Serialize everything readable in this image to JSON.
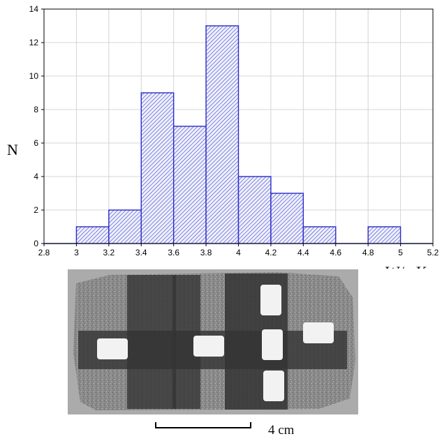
{
  "chart_data": {
    "type": "bar",
    "subtype": "histogram",
    "bin_edges": [
      2.8,
      3.0,
      3.2,
      3.4,
      3.6,
      3.8,
      4.0,
      4.2,
      4.4,
      4.6,
      4.8,
      5.0,
      5.2
    ],
    "counts": [
      0,
      1,
      2,
      9,
      7,
      13,
      4,
      3,
      1,
      0,
      1,
      0
    ],
    "xlabel": "W/mK",
    "ylabel": "N",
    "xlim": [
      2.8,
      5.2
    ],
    "ylim": [
      0,
      14
    ],
    "xticks": [
      "2.8",
      "3",
      "3.2",
      "3.4",
      "3.6",
      "3.8",
      "4",
      "4.2",
      "4.4",
      "4.6",
      "4.8",
      "5",
      "5.2"
    ],
    "yticks": [
      "0",
      "2",
      "4",
      "6",
      "8",
      "10",
      "12",
      "14"
    ],
    "grid": true,
    "bar_fill": "hatched",
    "bar_color": "#2b2bc8"
  },
  "photo": {
    "scale_label": "4 cm"
  }
}
